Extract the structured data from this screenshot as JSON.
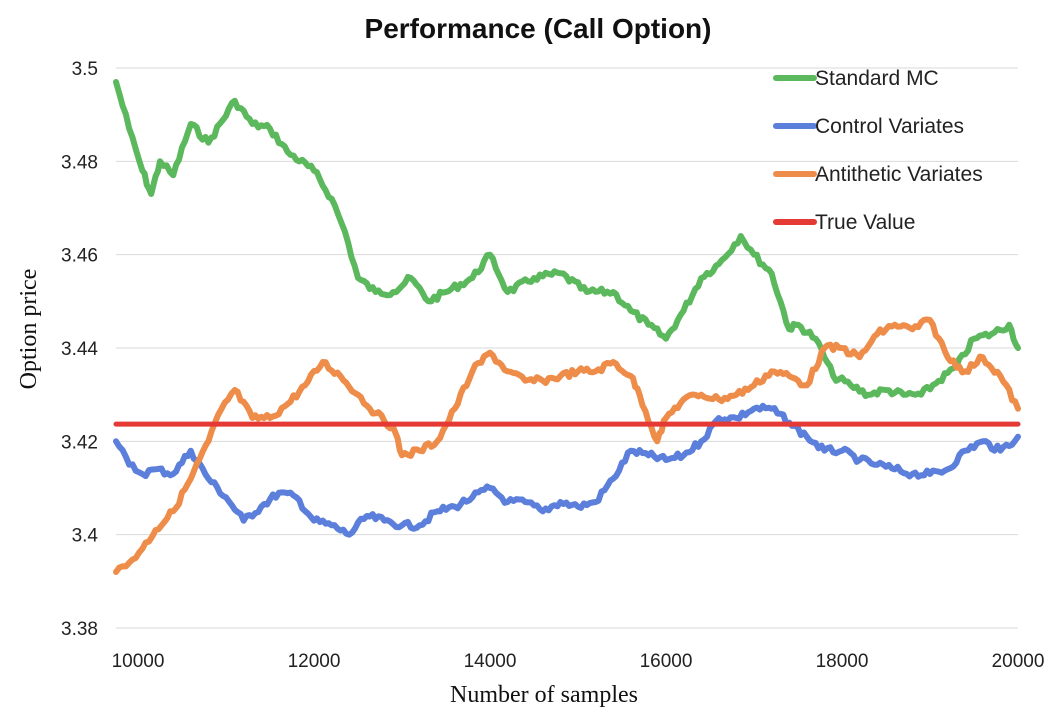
{
  "chart_data": {
    "type": "line",
    "title": "Performance (Call Option)",
    "xlabel": "Number of samples",
    "ylabel": "Option price",
    "xlim": [
      9750,
      20000
    ],
    "ylim": [
      3.38,
      3.5
    ],
    "x_ticks": [
      "10000",
      "12000",
      "14000",
      "16000",
      "18000",
      "20000"
    ],
    "y_ticks": [
      "3.38",
      "3.4",
      "3.42",
      "3.44",
      "3.46",
      "3.48",
      "3.5"
    ],
    "grid": "horizontal",
    "legend_position": "top-right",
    "series": [
      {
        "name": "Standard MC",
        "color": "#5cb85c",
        "x": [
          9750,
          9900,
          10050,
          10150,
          10250,
          10400,
          10600,
          10800,
          11100,
          11300,
          11500,
          11700,
          12000,
          12200,
          12350,
          12500,
          12700,
          12900,
          13100,
          13300,
          13500,
          13800,
          14000,
          14200,
          14500,
          14800,
          15100,
          15400,
          15600,
          15800,
          16000,
          16200,
          16400,
          16600,
          16850,
          17000,
          17200,
          17400,
          17500,
          17700,
          17900,
          18100,
          18300,
          18500,
          18700,
          18900,
          19100,
          19300,
          19500,
          19700,
          19900,
          20000
        ],
        "y": [
          3.497,
          3.487,
          3.478,
          3.473,
          3.48,
          3.477,
          3.488,
          3.484,
          3.493,
          3.488,
          3.487,
          3.482,
          3.478,
          3.472,
          3.465,
          3.455,
          3.452,
          3.452,
          3.455,
          3.45,
          3.452,
          3.455,
          3.46,
          3.452,
          3.455,
          3.456,
          3.452,
          3.452,
          3.448,
          3.445,
          3.442,
          3.448,
          3.455,
          3.458,
          3.464,
          3.46,
          3.456,
          3.444,
          3.445,
          3.442,
          3.434,
          3.432,
          3.43,
          3.431,
          3.43,
          3.43,
          3.433,
          3.436,
          3.442,
          3.443,
          3.445,
          3.44
        ]
      },
      {
        "name": "Control Variates",
        "color": "#5b7fdb",
        "x": [
          9750,
          9900,
          10050,
          10200,
          10400,
          10600,
          10800,
          11000,
          11200,
          11400,
          11600,
          11800,
          12000,
          12200,
          12400,
          12600,
          12800,
          13000,
          13200,
          13400,
          13600,
          13800,
          14000,
          14200,
          14400,
          14600,
          14800,
          15000,
          15200,
          15400,
          15600,
          15800,
          16000,
          16200,
          16400,
          16600,
          16800,
          17000,
          17200,
          17400,
          17600,
          17800,
          18000,
          18200,
          18400,
          18600,
          18800,
          19000,
          19200,
          19400,
          19600,
          19800,
          20000
        ],
        "y": [
          3.42,
          3.415,
          3.413,
          3.414,
          3.413,
          3.418,
          3.412,
          3.408,
          3.403,
          3.406,
          3.409,
          3.408,
          3.403,
          3.402,
          3.4,
          3.404,
          3.403,
          3.402,
          3.402,
          3.405,
          3.406,
          3.408,
          3.41,
          3.407,
          3.407,
          3.405,
          3.407,
          3.406,
          3.407,
          3.412,
          3.418,
          3.417,
          3.416,
          3.417,
          3.42,
          3.425,
          3.425,
          3.427,
          3.427,
          3.424,
          3.421,
          3.418,
          3.418,
          3.416,
          3.415,
          3.414,
          3.413,
          3.413,
          3.414,
          3.418,
          3.42,
          3.418,
          3.421
        ]
      },
      {
        "name": "Antithetic Variates",
        "color": "#ee8c4a",
        "x": [
          9750,
          9900,
          10050,
          10200,
          10400,
          10600,
          10800,
          10950,
          11100,
          11300,
          11500,
          11700,
          11900,
          12100,
          12300,
          12500,
          12700,
          12900,
          13000,
          13200,
          13400,
          13600,
          13800,
          14000,
          14200,
          14400,
          14600,
          14800,
          15000,
          15200,
          15400,
          15600,
          15700,
          15900,
          16000,
          16200,
          16400,
          16600,
          16800,
          17000,
          17200,
          17400,
          17600,
          17800,
          18000,
          18200,
          18400,
          18600,
          18800,
          19000,
          19200,
          19400,
          19600,
          19800,
          20000
        ],
        "y": [
          3.392,
          3.394,
          3.397,
          3.401,
          3.405,
          3.412,
          3.42,
          3.427,
          3.431,
          3.425,
          3.425,
          3.428,
          3.432,
          3.437,
          3.434,
          3.43,
          3.426,
          3.423,
          3.417,
          3.418,
          3.42,
          3.427,
          3.435,
          3.439,
          3.435,
          3.433,
          3.433,
          3.434,
          3.435,
          3.435,
          3.437,
          3.434,
          3.43,
          3.42,
          3.425,
          3.429,
          3.43,
          3.429,
          3.43,
          3.432,
          3.435,
          3.434,
          3.432,
          3.44,
          3.44,
          3.438,
          3.443,
          3.445,
          3.444,
          3.446,
          3.438,
          3.435,
          3.438,
          3.434,
          3.427
        ]
      },
      {
        "name": "True Value",
        "color": "#e53935",
        "x": [
          9750,
          20000
        ],
        "y": [
          3.4237,
          3.4237
        ]
      }
    ]
  }
}
